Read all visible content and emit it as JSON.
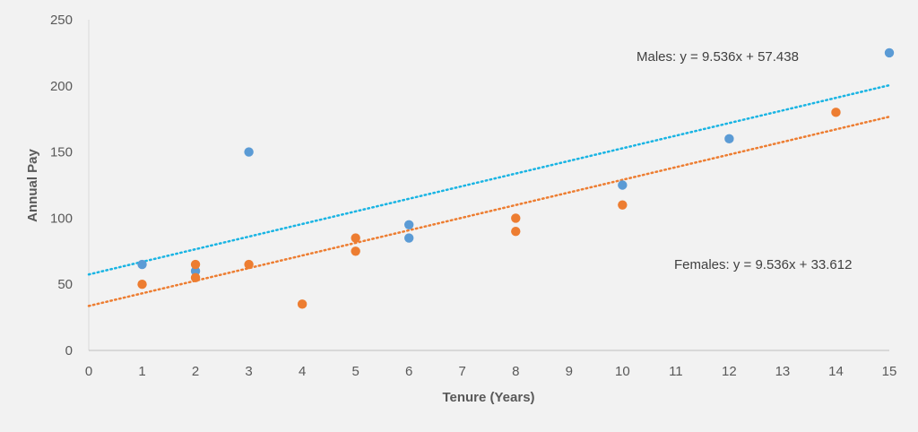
{
  "chart_data": {
    "type": "scatter",
    "title": "",
    "xlabel": "Tenure (Years)",
    "ylabel": "Annual Pay",
    "xlim": [
      0,
      15
    ],
    "ylim": [
      0,
      250
    ],
    "x_ticks": [
      0,
      1,
      2,
      3,
      4,
      5,
      6,
      7,
      8,
      9,
      10,
      11,
      12,
      13,
      14,
      15
    ],
    "y_ticks": [
      0,
      50,
      100,
      150,
      200,
      250
    ],
    "grid": false,
    "legend": "none",
    "series": [
      {
        "color": "#5b9bd5",
        "points": [
          {
            "x": 1,
            "y": 65
          },
          {
            "x": 2,
            "y": 60
          },
          {
            "x": 3,
            "y": 150
          },
          {
            "x": 6,
            "y": 95
          },
          {
            "x": 6,
            "y": 85
          },
          {
            "x": 10,
            "y": 125
          },
          {
            "x": 12,
            "y": 160
          },
          {
            "x": 15,
            "y": 225
          }
        ]
      },
      {
        "color": "#ed7d31",
        "points": [
          {
            "x": 1,
            "y": 50
          },
          {
            "x": 2,
            "y": 65
          },
          {
            "x": 2,
            "y": 55
          },
          {
            "x": 3,
            "y": 65
          },
          {
            "x": 4,
            "y": 35
          },
          {
            "x": 5,
            "y": 85
          },
          {
            "x": 5,
            "y": 75
          },
          {
            "x": 8,
            "y": 100
          },
          {
            "x": 8,
            "y": 90
          },
          {
            "x": 10,
            "y": 110
          },
          {
            "x": 14,
            "y": 180
          }
        ]
      }
    ],
    "trendlines": [
      {
        "slope": 9.536,
        "intercept": 57.438,
        "color": "#19b4e3",
        "label": "Males:  y = 9.536x + 57.438"
      },
      {
        "slope": 9.536,
        "intercept": 33.612,
        "color": "#ed7d31",
        "label": "Females:  y = 9.536x + 33.612"
      }
    ]
  }
}
